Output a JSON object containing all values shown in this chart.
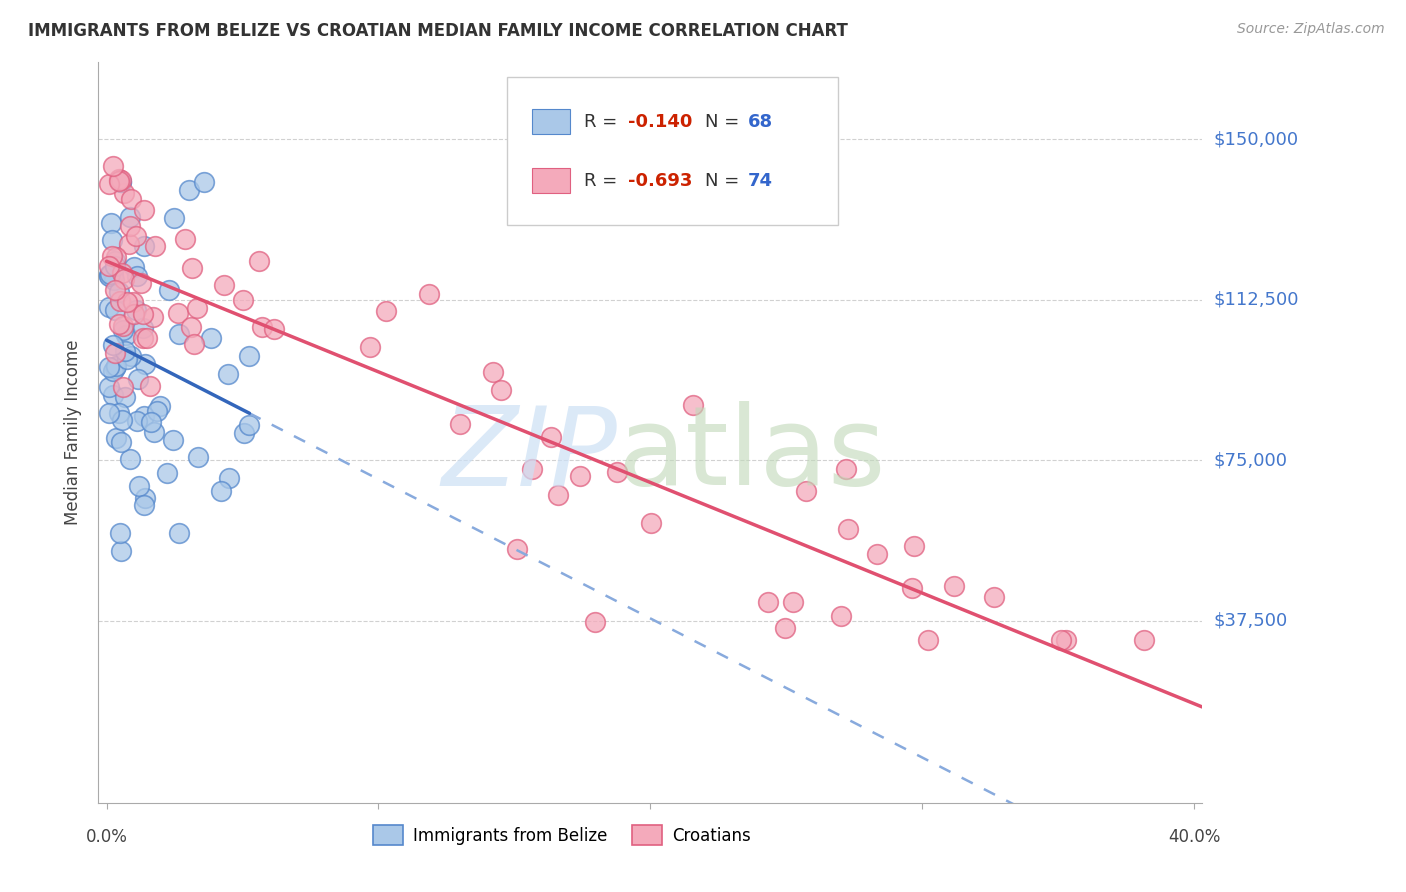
{
  "title": "IMMIGRANTS FROM BELIZE VS CROATIAN MEDIAN FAMILY INCOME CORRELATION CHART",
  "source": "Source: ZipAtlas.com",
  "ylabel": "Median Family Income",
  "ytick_labels": [
    "$37,500",
    "$75,000",
    "$112,500",
    "$150,000"
  ],
  "ytick_values": [
    37500,
    75000,
    112500,
    150000
  ],
  "ylim": [
    -5000,
    168000
  ],
  "xlim": [
    -0.003,
    0.403
  ],
  "color_belize_fill": "#aac8e8",
  "color_belize_edge": "#5588cc",
  "color_belize_line": "#3366bb",
  "color_belize_dash": "#88aadd",
  "color_croatia_fill": "#f4aabb",
  "color_croatia_edge": "#e06080",
  "color_croatia_line": "#e05070",
  "color_axis_labels": "#4477cc",
  "color_title": "#333333",
  "color_r_value": "#cc2200",
  "color_n_value": "#3366cc",
  "color_grid": "#cccccc",
  "watermark_zip_color": "#cce0f5",
  "watermark_atlas_color": "#c0d8b8",
  "legend_r1": "-0.140",
  "legend_n1": "68",
  "legend_r2": "-0.693",
  "legend_n2": "74"
}
